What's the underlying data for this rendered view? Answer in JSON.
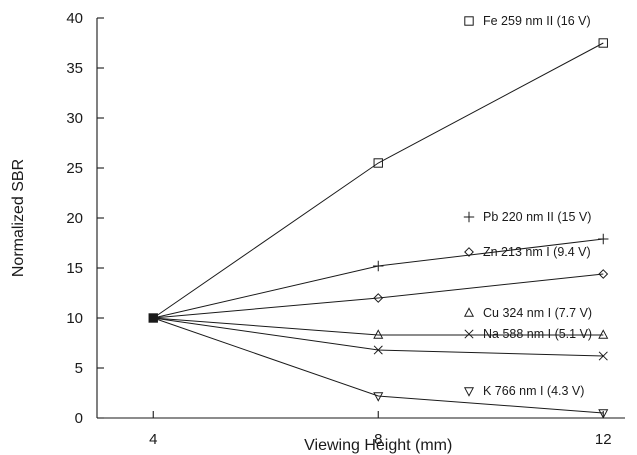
{
  "chart_data": {
    "type": "line",
    "title": "",
    "xlabel": "Viewing Height (mm)",
    "ylabel": "Normalized SBR",
    "xlim": [
      3,
      12.6
    ],
    "ylim": [
      0,
      40
    ],
    "x_ticks": [
      4,
      8,
      12
    ],
    "y_ticks": [
      0,
      5,
      10,
      15,
      20,
      25,
      30,
      35,
      40
    ],
    "grid": false,
    "x": [
      4,
      8,
      12
    ],
    "common_start_marker": "filled-square",
    "series": [
      {
        "name": "Fe 259 nm II (16 V)",
        "marker": "square",
        "values": [
          10,
          25.5,
          37.5
        ]
      },
      {
        "name": "Pb 220 nm II (15 V)",
        "marker": "plus",
        "values": [
          10,
          15.2,
          17.9
        ]
      },
      {
        "name": "Zn 213 nm I (9.4 V)",
        "marker": "diamond",
        "values": [
          10,
          12,
          14.4
        ]
      },
      {
        "name": "Cu 324 nm I (7.7 V)",
        "marker": "triangle-up",
        "values": [
          10,
          8.3,
          8.3
        ]
      },
      {
        "name": "Na 588 nm I (5.1 V)",
        "marker": "cross",
        "values": [
          10,
          6.8,
          6.2
        ]
      },
      {
        "name": "K 766 nm I (4.3 V)",
        "marker": "triangle-down",
        "values": [
          10,
          2.2,
          0.5
        ]
      }
    ]
  }
}
